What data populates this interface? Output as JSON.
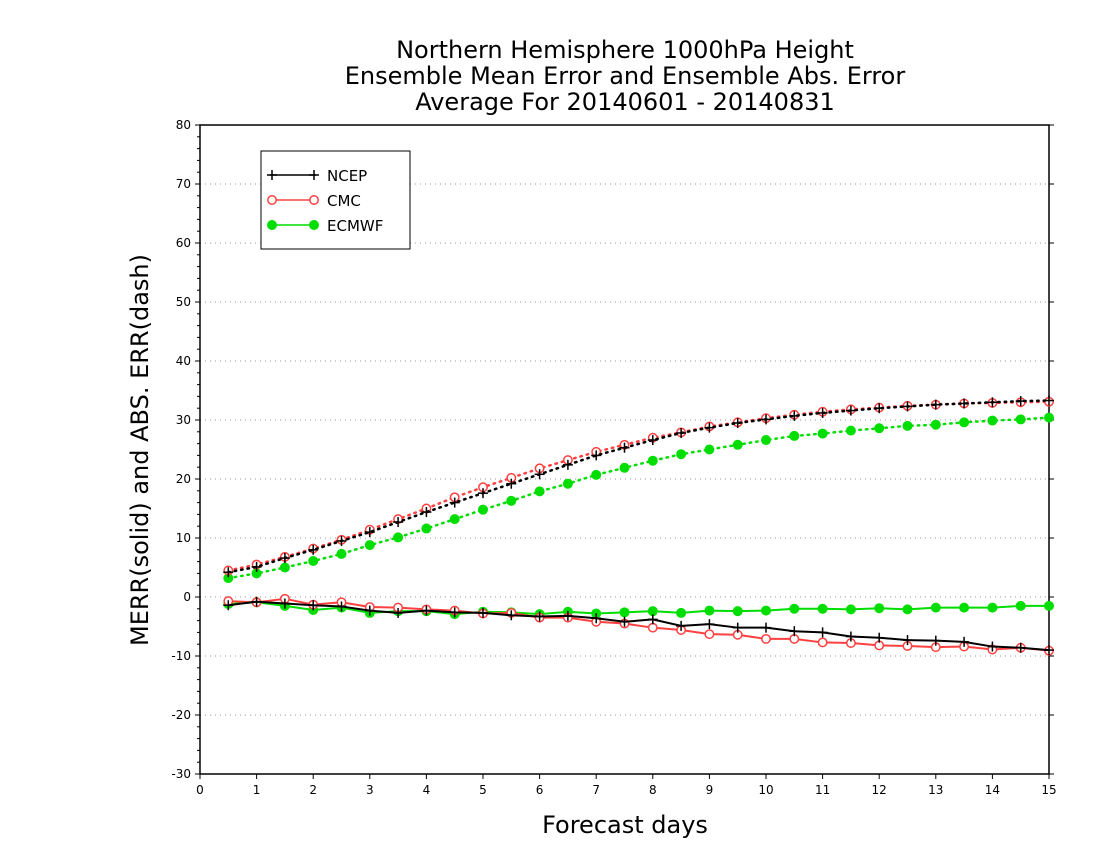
{
  "chart_data": {
    "type": "line",
    "title": [
      "Northern Hemisphere 1000hPa Height",
      "Ensemble Mean Error and Ensemble Abs. Error",
      "Average For 20140601 - 20140831"
    ],
    "xlabel": "Forecast days",
    "ylabel": "MERR(solid) and ABS. ERR(dash)",
    "xlim": [
      0,
      15
    ],
    "ylim": [
      -30,
      80
    ],
    "xticks": [
      0,
      1,
      2,
      3,
      4,
      5,
      6,
      7,
      8,
      9,
      10,
      11,
      12,
      13,
      14,
      15
    ],
    "yticks": [
      -30,
      -20,
      -10,
      0,
      10,
      20,
      30,
      40,
      50,
      60,
      70,
      80
    ],
    "grid": "horizontal dotted",
    "legend_position": "top-left",
    "x": [
      0.5,
      1,
      1.5,
      2,
      2.5,
      3,
      3.5,
      4,
      4.5,
      5,
      5.5,
      6,
      6.5,
      7,
      7.5,
      8,
      8.5,
      9,
      9.5,
      10,
      10.5,
      11,
      11.5,
      12,
      12.5,
      13,
      13.5,
      14,
      14.5,
      15
    ],
    "series": [
      {
        "name": "NCEP",
        "color": "#000000",
        "marker": "plus",
        "merr": [
          -1.4,
          -0.8,
          -1.1,
          -1.4,
          -1.6,
          -2.3,
          -2.7,
          -2.3,
          -2.6,
          -2.7,
          -3.1,
          -3.3,
          -3.2,
          -3.6,
          -4.2,
          -3.8,
          -4.9,
          -4.6,
          -5.2,
          -5.2,
          -5.8,
          -6.0,
          -6.7,
          -6.9,
          -7.3,
          -7.4,
          -7.6,
          -8.4,
          -8.6,
          -9.0
        ],
        "abs_err": [
          4.2,
          5.1,
          6.6,
          8.0,
          9.5,
          11.0,
          12.7,
          14.4,
          16.0,
          17.6,
          19.2,
          20.8,
          22.4,
          24.0,
          25.3,
          26.6,
          27.8,
          28.7,
          29.5,
          30.1,
          30.7,
          31.2,
          31.6,
          32.0,
          32.3,
          32.6,
          32.8,
          33.0,
          33.2,
          33.3
        ]
      },
      {
        "name": "CMC",
        "color": "#ff4040",
        "marker": "open-circle",
        "merr": [
          -0.7,
          -0.9,
          -0.3,
          -1.3,
          -0.9,
          -1.7,
          -1.8,
          -2.1,
          -2.3,
          -2.8,
          -2.7,
          -3.5,
          -3.5,
          -4.2,
          -4.5,
          -5.2,
          -5.6,
          -6.3,
          -6.4,
          -7.1,
          -7.1,
          -7.7,
          -7.8,
          -8.2,
          -8.3,
          -8.5,
          -8.4,
          -8.9,
          -8.6,
          -9.1
        ],
        "abs_err": [
          4.5,
          5.5,
          6.8,
          8.2,
          9.7,
          11.4,
          13.2,
          15.0,
          16.9,
          18.6,
          20.2,
          21.8,
          23.2,
          24.6,
          25.8,
          27.0,
          27.9,
          28.9,
          29.6,
          30.3,
          30.9,
          31.4,
          31.8,
          32.1,
          32.4,
          32.6,
          32.8,
          32.9,
          33.0,
          33.1
        ]
      },
      {
        "name": "ECMWF",
        "color": "#00dd00",
        "marker": "filled-circle",
        "merr": [
          -1.2,
          -0.9,
          -1.5,
          -2.2,
          -1.8,
          -2.7,
          -2.4,
          -2.4,
          -2.9,
          -2.5,
          -2.6,
          -2.9,
          -2.5,
          -2.8,
          -2.6,
          -2.4,
          -2.7,
          -2.3,
          -2.4,
          -2.3,
          -2.0,
          -2.0,
          -2.1,
          -1.9,
          -2.1,
          -1.8,
          -1.8,
          -1.8,
          -1.5,
          -1.5
        ],
        "abs_err": [
          3.2,
          4.0,
          5.0,
          6.1,
          7.3,
          8.8,
          10.1,
          11.6,
          13.2,
          14.8,
          16.3,
          17.9,
          19.2,
          20.7,
          21.9,
          23.1,
          24.2,
          25.0,
          25.8,
          26.6,
          27.3,
          27.7,
          28.2,
          28.6,
          29.0,
          29.2,
          29.6,
          29.9,
          30.1,
          30.4
        ]
      }
    ]
  }
}
